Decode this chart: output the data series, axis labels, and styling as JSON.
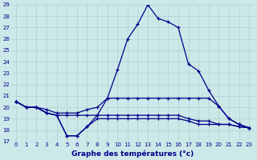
{
  "xlabel": "Graphe des températures (°c)",
  "hours": [
    0,
    1,
    2,
    3,
    4,
    5,
    6,
    7,
    8,
    9,
    10,
    11,
    12,
    13,
    14,
    15,
    16,
    17,
    18,
    19,
    20,
    21,
    22,
    23
  ],
  "temp_max": [
    20.5,
    20.0,
    20.0,
    19.5,
    19.3,
    17.5,
    17.5,
    18.3,
    19.3,
    20.8,
    23.3,
    26.0,
    27.3,
    29.0,
    27.8,
    27.5,
    27.0,
    23.8,
    23.2,
    21.5,
    20.1,
    19.0,
    18.5,
    18.2
  ],
  "temp_upper_flat": [
    20.5,
    20.0,
    20.0,
    19.8,
    19.5,
    19.5,
    19.5,
    19.8,
    20.0,
    20.8,
    20.8,
    20.8,
    20.8,
    20.8,
    20.8,
    20.8,
    20.8,
    20.8,
    20.8,
    20.8,
    20.1,
    19.0,
    18.5,
    18.2
  ],
  "temp_lower_flat": [
    20.5,
    20.0,
    20.0,
    19.5,
    19.3,
    19.3,
    19.3,
    19.3,
    19.3,
    19.3,
    19.3,
    19.3,
    19.3,
    19.3,
    19.3,
    19.3,
    19.3,
    19.0,
    18.8,
    18.8,
    18.5,
    18.5,
    18.3,
    18.2
  ],
  "temp_min": [
    20.5,
    20.0,
    20.0,
    19.5,
    19.3,
    17.5,
    17.5,
    18.3,
    19.0,
    19.0,
    19.0,
    19.0,
    19.0,
    19.0,
    19.0,
    19.0,
    19.0,
    18.8,
    18.5,
    18.5,
    18.5,
    18.5,
    18.3,
    18.2
  ],
  "ylim": [
    17,
    29
  ],
  "yticks": [
    17,
    18,
    19,
    20,
    21,
    22,
    23,
    24,
    25,
    26,
    27,
    28,
    29
  ],
  "xticks": [
    0,
    1,
    2,
    3,
    4,
    5,
    6,
    7,
    8,
    9,
    10,
    11,
    12,
    13,
    14,
    15,
    16,
    17,
    18,
    19,
    20,
    21,
    22,
    23
  ],
  "bg_color": "#cce8e8",
  "grid_color": "#aed0d0",
  "line_color": "#00008b"
}
